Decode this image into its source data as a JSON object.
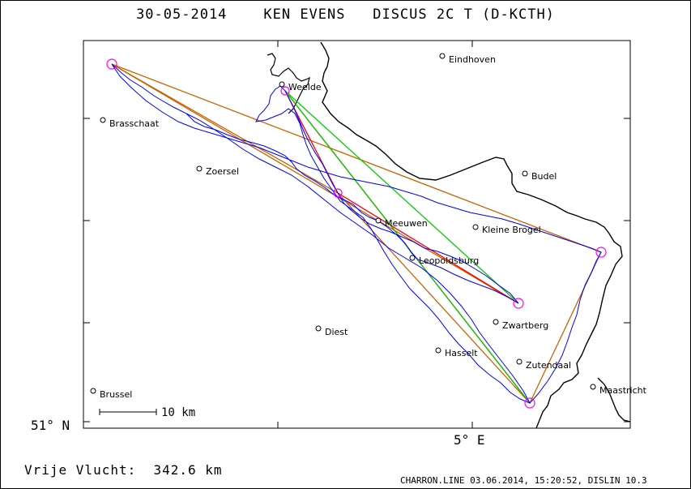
{
  "header": {
    "date": "30-05-2014",
    "pilot": "KEN EVENS",
    "glider": "DISCUS 2C T (D-KCTH)"
  },
  "footer": {
    "distance_label": "Vrije Vlucht:",
    "distance_value": "342.6 km",
    "credit": "CHARRON.LINE 03.06.2014, 15:20:52, DISLIN 10.3"
  },
  "axes": {
    "lat_label": "51° N",
    "lon_label": "5° E"
  },
  "scale_bar": {
    "label": "10 km"
  },
  "cities": [
    {
      "name": "Eindhoven"
    },
    {
      "name": "Weelde"
    },
    {
      "name": "Brasschaat"
    },
    {
      "name": "Zoersel"
    },
    {
      "name": "Budel"
    },
    {
      "name": "Meeuwen"
    },
    {
      "name": "Kleine Brogel"
    },
    {
      "name": "Leopoldsburg"
    },
    {
      "name": "Zwartberg"
    },
    {
      "name": "Diest"
    },
    {
      "name": "Hasselt"
    },
    {
      "name": "Zutendaal"
    },
    {
      "name": "Maastricht"
    },
    {
      "name": "Brussel"
    }
  ],
  "colors": {
    "border": "#000000",
    "track": "#0000ff",
    "task_line": "#c86400",
    "leg_red": "#ff0000",
    "leg_green": "#00cc00",
    "turnpoint": "#ff00ff"
  }
}
